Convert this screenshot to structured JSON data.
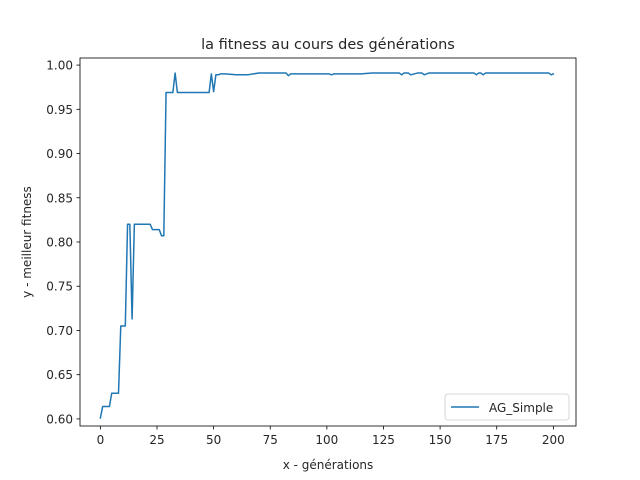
{
  "chart_data": {
    "type": "line",
    "title": "la fitness au cours des générations",
    "xlabel": "x - générations",
    "ylabel": "y - meilleur fitness",
    "xlim": [
      -9,
      210
    ],
    "ylim": [
      0.592,
      1.008
    ],
    "xticks": [
      0,
      25,
      50,
      75,
      100,
      125,
      150,
      175,
      200
    ],
    "yticks": [
      0.6,
      0.65,
      0.7,
      0.75,
      0.8,
      0.85,
      0.9,
      0.95,
      1.0
    ],
    "ytick_labels": [
      "0.60",
      "0.65",
      "0.70",
      "0.75",
      "0.80",
      "0.85",
      "0.90",
      "0.95",
      "1.00"
    ],
    "grid": false,
    "legend_position": "lower right",
    "colors": {
      "series": "#1f77b4",
      "axes": "#000000"
    },
    "series": [
      {
        "name": "AG_Simple",
        "x": [
          0,
          1,
          2,
          3,
          4,
          5,
          6,
          7,
          8,
          9,
          10,
          11,
          12,
          13,
          14,
          15,
          16,
          17,
          18,
          19,
          20,
          21,
          22,
          23,
          24,
          25,
          26,
          27,
          28,
          29,
          30,
          31,
          32,
          33,
          34,
          35,
          40,
          45,
          48,
          49,
          50,
          51,
          52,
          53,
          54,
          55,
          60,
          65,
          70,
          75,
          80,
          82,
          83,
          84,
          85,
          90,
          95,
          100,
          101,
          102,
          103,
          104,
          105,
          110,
          115,
          120,
          125,
          130,
          132,
          133,
          134,
          135,
          136,
          137,
          140,
          142,
          143,
          145,
          150,
          155,
          160,
          165,
          166,
          167,
          168,
          169,
          170,
          175,
          180,
          185,
          190,
          195,
          198,
          199,
          200
        ],
        "y": [
          0.601,
          0.614,
          0.614,
          0.614,
          0.614,
          0.629,
          0.629,
          0.629,
          0.629,
          0.705,
          0.705,
          0.705,
          0.82,
          0.82,
          0.713,
          0.82,
          0.82,
          0.82,
          0.82,
          0.82,
          0.82,
          0.82,
          0.82,
          0.814,
          0.814,
          0.814,
          0.814,
          0.807,
          0.807,
          0.969,
          0.969,
          0.969,
          0.969,
          0.991,
          0.969,
          0.969,
          0.969,
          0.969,
          0.969,
          0.99,
          0.97,
          0.989,
          0.989,
          0.99,
          0.99,
          0.99,
          0.989,
          0.989,
          0.991,
          0.991,
          0.991,
          0.991,
          0.988,
          0.99,
          0.99,
          0.99,
          0.99,
          0.99,
          0.99,
          0.989,
          0.99,
          0.99,
          0.99,
          0.99,
          0.99,
          0.991,
          0.991,
          0.991,
          0.991,
          0.989,
          0.991,
          0.991,
          0.991,
          0.989,
          0.991,
          0.991,
          0.989,
          0.991,
          0.991,
          0.991,
          0.991,
          0.991,
          0.989,
          0.991,
          0.991,
          0.989,
          0.991,
          0.991,
          0.991,
          0.991,
          0.991,
          0.991,
          0.991,
          0.989,
          0.99
        ]
      }
    ]
  }
}
